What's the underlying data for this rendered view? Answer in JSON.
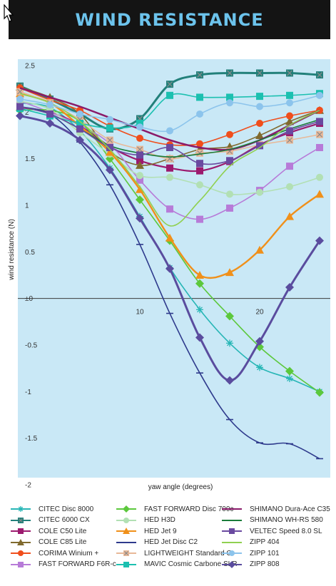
{
  "header": {
    "title": "WIND RESISTANCE"
  },
  "chart_data": {
    "type": "line",
    "xlabel": "yaw angle (degrees)",
    "ylabel": "wind resistance (N)",
    "xlim": [
      0,
      27
    ],
    "ylim": [
      -2,
      2.5
    ],
    "xticks": [
      {
        "value": 10,
        "label": "10"
      },
      {
        "value": 20,
        "label": "20"
      }
    ],
    "yticks": [
      {
        "value": 2.5,
        "label": "2.5"
      },
      {
        "value": 2,
        "label": "2"
      },
      {
        "value": 1.5,
        "label": "1.5"
      },
      {
        "value": 1,
        "label": "1"
      },
      {
        "value": 0.5,
        "label": "0.5"
      },
      {
        "value": 0,
        "label": "±0"
      },
      {
        "value": -0.5,
        "label": "-0.5"
      },
      {
        "value": -1,
        "label": "-1"
      },
      {
        "value": -1.5,
        "label": "-1.5"
      },
      {
        "value": -2,
        "label": "-2"
      }
    ],
    "grid": false,
    "legend_position": "bottom",
    "series": [
      {
        "name": "CITEC Disc 8000",
        "color": "#27b6b6",
        "marker": "star",
        "x": [
          0,
          2.5,
          5,
          7.5,
          10,
          12.5,
          15,
          17.5,
          20,
          22.5,
          25
        ],
        "y": [
          2.1,
          2.05,
          1.8,
          1.4,
          0.88,
          0.33,
          -0.12,
          -0.48,
          -0.74,
          -0.86,
          -1.0
        ]
      },
      {
        "name": "CITEC 6000 CX",
        "color": "#22807a",
        "marker": "square-x",
        "x": [
          0,
          2.5,
          5,
          7.5,
          10,
          12.5,
          15,
          17.5,
          20,
          22.5,
          25
        ],
        "y": [
          2.28,
          2.14,
          1.98,
          1.82,
          1.93,
          2.3,
          2.4,
          2.42,
          2.42,
          2.42,
          2.4
        ]
      },
      {
        "name": "COLE C50 Lite",
        "color": "#9c1a6e",
        "marker": "square",
        "x": [
          0,
          2.5,
          5,
          7.5,
          10,
          12.5,
          15,
          17.5,
          20,
          22.5,
          25
        ],
        "y": [
          2.05,
          2.0,
          1.86,
          1.63,
          1.48,
          1.4,
          1.37,
          1.47,
          1.65,
          1.78,
          1.88
        ]
      },
      {
        "name": "COLE C85 Lite",
        "color": "#806a2e",
        "marker": "triangle",
        "x": [
          0,
          2.5,
          5,
          7.5,
          10,
          12.5,
          15,
          17.5,
          20,
          22.5,
          25
        ],
        "y": [
          2.27,
          2.16,
          1.98,
          1.58,
          1.43,
          1.5,
          1.6,
          1.63,
          1.75,
          1.9,
          2.02
        ]
      },
      {
        "name": "CORIMA Winium +",
        "color": "#f04e1c",
        "marker": "circle",
        "x": [
          0,
          2.5,
          5,
          7.5,
          10,
          12.5,
          15,
          17.5,
          20,
          22.5,
          25
        ],
        "y": [
          2.26,
          2.13,
          2.02,
          1.85,
          1.72,
          1.65,
          1.66,
          1.76,
          1.88,
          1.96,
          2.02
        ]
      },
      {
        "name": "FAST FORWARD F6R-c",
        "color": "#b77bd8",
        "marker": "square",
        "x": [
          0,
          2.5,
          5,
          7.5,
          10,
          12.5,
          15,
          17.5,
          20,
          22.5,
          25
        ],
        "y": [
          2.12,
          2.0,
          1.86,
          1.66,
          1.27,
          0.96,
          0.85,
          0.97,
          1.16,
          1.42,
          1.62
        ]
      },
      {
        "name": "FAST FORWARD Disc 700c",
        "color": "#5cc83c",
        "marker": "diamond",
        "x": [
          0,
          2.5,
          5,
          7.5,
          10,
          12.5,
          15,
          17.5,
          20,
          22.5,
          25
        ],
        "y": [
          2.02,
          2.02,
          1.9,
          1.5,
          1.06,
          0.62,
          0.16,
          -0.19,
          -0.52,
          -0.78,
          -1.01
        ]
      },
      {
        "name": "HED H3D",
        "color": "#b2e0b4",
        "marker": "circle",
        "x": [
          0,
          2.5,
          5,
          7.5,
          10,
          12.5,
          15,
          17.5,
          20,
          22.5,
          25
        ],
        "y": [
          2.12,
          2.03,
          1.78,
          1.55,
          1.32,
          1.3,
          1.22,
          1.12,
          1.14,
          1.2,
          1.3
        ]
      },
      {
        "name": "HED Jet 9",
        "color": "#f0901a",
        "marker": "triangle",
        "x": [
          0,
          2.5,
          5,
          7.5,
          10,
          12.5,
          15,
          17.5,
          20,
          22.5,
          25
        ],
        "y": [
          2.2,
          2.1,
          1.85,
          1.57,
          1.17,
          0.65,
          0.25,
          0.28,
          0.52,
          0.88,
          1.12
        ]
      },
      {
        "name": "HED Jet Disc C2",
        "color": "#2e3a8c",
        "marker": "dash",
        "x": [
          0,
          2.5,
          5,
          7.5,
          10,
          12.5,
          15,
          17.5,
          20,
          22.5,
          25
        ],
        "y": [
          2.06,
          1.98,
          1.68,
          1.22,
          0.58,
          -0.16,
          -0.8,
          -1.3,
          -1.55,
          -1.56,
          -1.72
        ]
      },
      {
        "name": "LIGHTWEIGHT Standard C",
        "color": "#e8b898",
        "marker": "square-x",
        "x": [
          0,
          2.5,
          5,
          7.5,
          10,
          12.5,
          15,
          17.5,
          20,
          22.5,
          25
        ],
        "y": [
          2.22,
          2.1,
          1.92,
          1.7,
          1.6,
          1.5,
          1.56,
          1.58,
          1.65,
          1.7,
          1.76
        ]
      },
      {
        "name": "MAVIC Cosmic Carbone SLR",
        "color": "#1cc0b0",
        "marker": "square",
        "x": [
          0,
          2.5,
          5,
          7.5,
          10,
          12.5,
          15,
          17.5,
          20,
          22.5,
          25
        ],
        "y": [
          2.04,
          1.96,
          1.88,
          1.83,
          1.88,
          2.18,
          2.16,
          2.16,
          2.17,
          2.18,
          2.2
        ]
      },
      {
        "name": "SHIMANO Dura-Ace C35",
        "color": "#8a1a6a",
        "marker": "none",
        "x": [
          0,
          2.5,
          5,
          7.5,
          10,
          12.5,
          15,
          17.5,
          20,
          22.5,
          25
        ],
        "y": [
          2.26,
          2.16,
          2.06,
          1.94,
          1.82,
          1.7,
          1.62,
          1.6,
          1.7,
          1.86,
          2.02
        ]
      },
      {
        "name": "SHIMANO WH-RS 580",
        "color": "#1a7c3a",
        "marker": "none",
        "x": [
          0,
          2.5,
          5,
          7.5,
          10,
          12.5,
          15,
          17.5,
          20,
          22.5,
          25
        ],
        "y": [
          2.06,
          1.98,
          1.82,
          1.64,
          1.56,
          1.52,
          1.55,
          1.6,
          1.7,
          1.82,
          1.92
        ]
      },
      {
        "name": "VELTEC Speed 8.0 SL",
        "color": "#6a4aa0",
        "marker": "square",
        "x": [
          0,
          2.5,
          5,
          7.5,
          10,
          12.5,
          15,
          17.5,
          20,
          22.5,
          25
        ],
        "y": [
          2.06,
          1.98,
          1.82,
          1.62,
          1.54,
          1.62,
          1.45,
          1.48,
          1.64,
          1.8,
          1.9
        ]
      },
      {
        "name": "ZIPP 404",
        "color": "#90d050",
        "marker": "none",
        "x": [
          0,
          2.5,
          5,
          7.5,
          10,
          12.5,
          15,
          17.5,
          20,
          22.5,
          25
        ],
        "y": [
          2.2,
          2.1,
          1.9,
          1.6,
          1.2,
          0.78,
          1.05,
          1.42,
          1.62,
          1.86,
          2.02
        ]
      },
      {
        "name": "ZIPP 101",
        "color": "#8cc4ec",
        "marker": "circle",
        "x": [
          0,
          2.5,
          5,
          7.5,
          10,
          12.5,
          15,
          17.5,
          20,
          22.5,
          25
        ],
        "y": [
          2.14,
          2.08,
          1.98,
          1.92,
          1.84,
          1.8,
          1.98,
          2.1,
          2.06,
          2.1,
          2.18
        ]
      },
      {
        "name": "ZIPP 808",
        "color": "#5a4c9e",
        "marker": "diamond",
        "x": [
          0,
          2.5,
          5,
          7.5,
          10,
          12.5,
          15,
          17.5,
          20,
          22.5,
          25
        ],
        "y": [
          1.96,
          1.88,
          1.7,
          1.38,
          0.86,
          0.32,
          -0.42,
          -0.88,
          -0.46,
          0.12,
          0.62
        ]
      }
    ]
  }
}
